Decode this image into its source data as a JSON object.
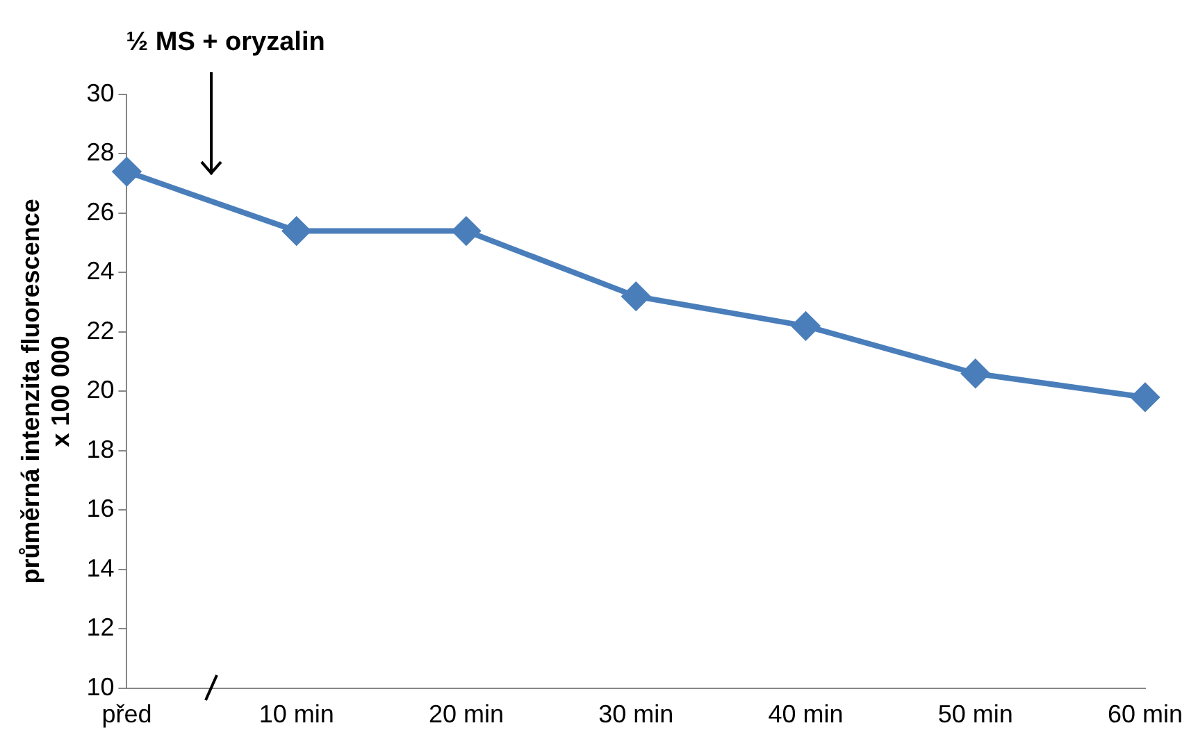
{
  "chart_data": {
    "type": "line",
    "ylabel": "průměrná intenzita fluorescence\nx 100 000",
    "categories": [
      "před",
      "10 min",
      "20 min",
      "30 min",
      "40 min",
      "50 min",
      "60 min"
    ],
    "series": [
      {
        "color": "#4a7ebb",
        "values": [
          27.4,
          25.4,
          25.4,
          23.2,
          22.2,
          20.6,
          19.8
        ]
      }
    ],
    "ylim": [
      10,
      30
    ],
    "yticks": [
      10,
      12,
      14,
      16,
      18,
      20,
      22,
      24,
      26,
      28,
      30
    ],
    "annotations": [
      "½ MS + oryzalin"
    ],
    "grid": false,
    "legend": false,
    "marker": "diamond",
    "line_style": "solid"
  }
}
